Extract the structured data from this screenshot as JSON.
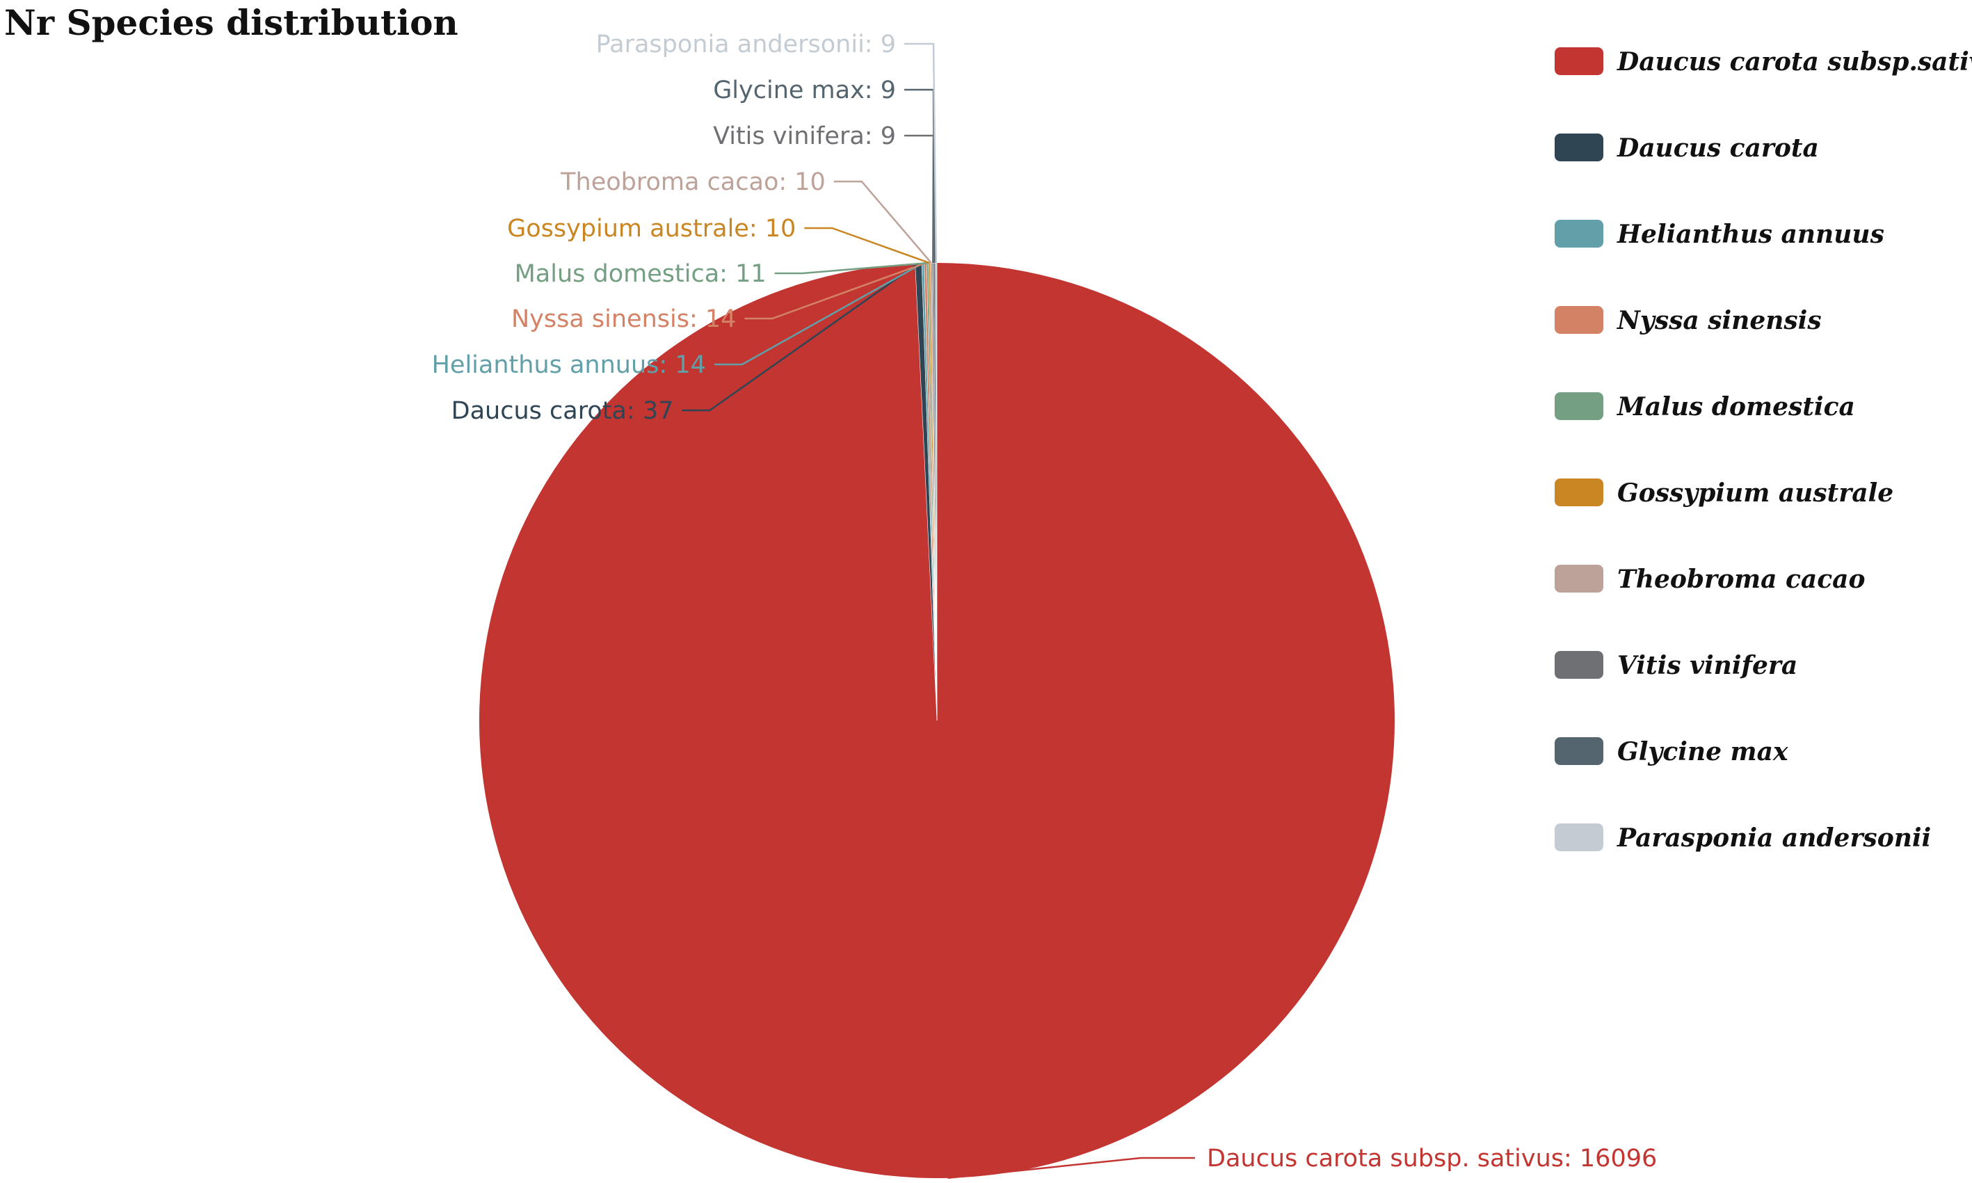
{
  "chart_data": {
    "type": "pie",
    "title": "Nr Species distribution",
    "legend_position": "right",
    "slices": [
      {
        "name": "Daucus carota subsp.sativus",
        "label": "Daucus carota subsp. sativus: 16096",
        "value": 16096,
        "color": "#c23531"
      },
      {
        "name": "Daucus carota",
        "label": "Daucus carota: 37",
        "value": 37,
        "color": "#2f4554"
      },
      {
        "name": "Helianthus annuus",
        "label": "Helianthus annuus: 14",
        "value": 14,
        "color": "#61a0a8"
      },
      {
        "name": "Nyssa sinensis",
        "label": "Nyssa sinensis: 14",
        "value": 14,
        "color": "#d48265"
      },
      {
        "name": "Malus domestica",
        "label": "Malus domestica: 11",
        "value": 11,
        "color": "#749f83"
      },
      {
        "name": "Gossypium australe",
        "label": "Gossypium australe: 10",
        "value": 10,
        "color": "#ca8622"
      },
      {
        "name": "Theobroma cacao",
        "label": "Theobroma cacao: 10",
        "value": 10,
        "color": "#bda29a"
      },
      {
        "name": "Vitis vinifera",
        "label": "Vitis vinifera: 9",
        "value": 9,
        "color": "#6e7074"
      },
      {
        "name": "Glycine max",
        "label": "Glycine max: 9",
        "value": 9,
        "color": "#546570"
      },
      {
        "name": "Parasponia andersonii",
        "label": "Parasponia andersonii: 9",
        "value": 9,
        "color": "#c4ccd3"
      }
    ]
  }
}
